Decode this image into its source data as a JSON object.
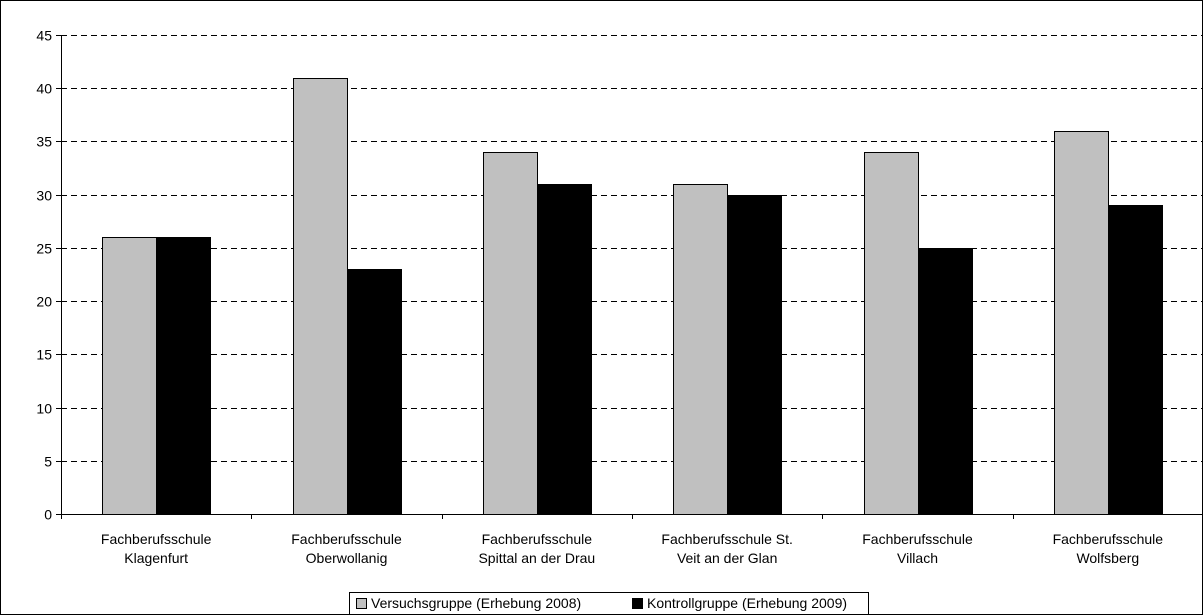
{
  "chart_data": {
    "type": "bar",
    "title": "",
    "xlabel": "",
    "ylabel": "",
    "ylim": [
      0,
      45
    ],
    "yticks": [
      0,
      5,
      10,
      15,
      20,
      25,
      30,
      35,
      40,
      45
    ],
    "grid": true,
    "legend_position": "bottom",
    "categories": [
      [
        "Fachberufsschule",
        "Klagenfurt"
      ],
      [
        "Fachberufsschule",
        "Oberwollanig"
      ],
      [
        "Fachberufsschule",
        "Spittal an der Drau"
      ],
      [
        "Fachberufsschule St.",
        "Veit an der Glan"
      ],
      [
        "Fachberufsschule",
        "Villach"
      ],
      [
        "Fachberufsschule",
        "Wolfsberg"
      ]
    ],
    "series": [
      {
        "name": "Versuchsgruppe (Erhebung 2008)",
        "color": "#c0c0c0",
        "values": [
          26,
          41,
          34,
          31,
          34,
          36
        ]
      },
      {
        "name": "Kontrollgruppe (Erhebung 2009)",
        "color": "#000000",
        "values": [
          26,
          23,
          31,
          30,
          25,
          29
        ]
      }
    ]
  }
}
